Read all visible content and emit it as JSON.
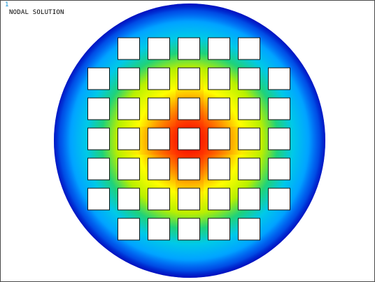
{
  "window": {
    "number_label": "1",
    "plot_label": "NODAL SOLUTION",
    "background_color": "#ffffff",
    "border_color": "#4a4a4a"
  },
  "contour": {
    "description_colors": {
      "low": "#0000cc",
      "low_mid": "#00a7ff",
      "mid": "#1fd27a",
      "mid_high": "#ffff00",
      "high": "#ff7a00",
      "max": "#e60000"
    },
    "hole_rows": [
      5,
      7,
      7,
      7,
      7,
      7,
      5
    ],
    "hole_fill": "#ffffff",
    "hole_border": "#111111"
  }
}
